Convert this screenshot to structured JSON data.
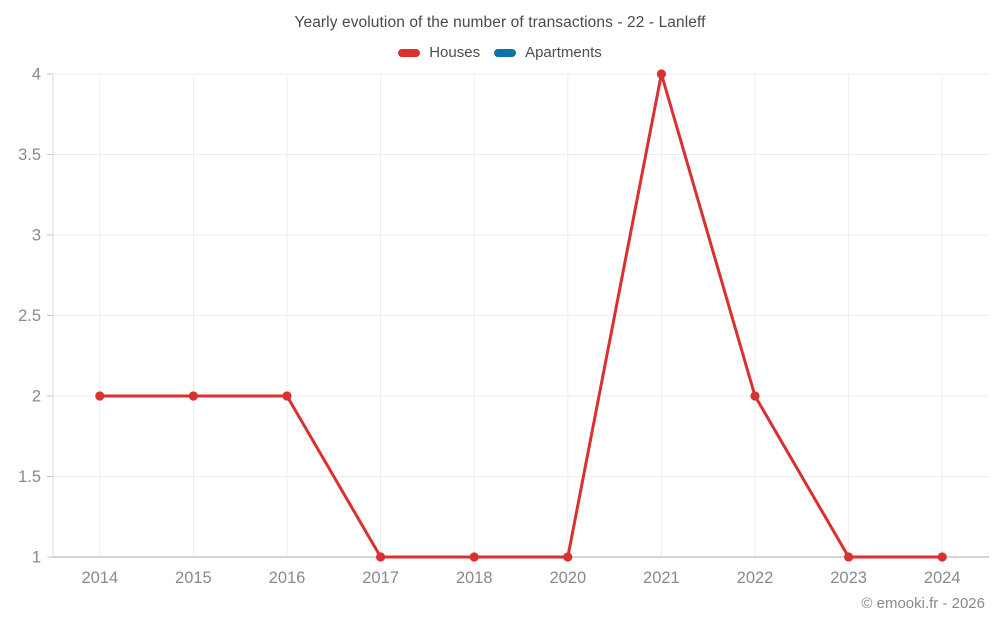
{
  "header": {
    "title": "Yearly evolution of the number of transactions - 22 - Lanleff"
  },
  "legend": {
    "items": [
      {
        "label": "Houses",
        "color": "#d93030"
      },
      {
        "label": "Apartments",
        "color": "#0f72a6"
      }
    ]
  },
  "footer": {
    "credit": "© emooki.fr - 2026"
  },
  "chart_data": {
    "type": "line",
    "title": "Yearly evolution of the number of transactions - 22 - Lanleff",
    "categories": [
      "2014",
      "2015",
      "2016",
      "2017",
      "2018",
      "2020",
      "2021",
      "2022",
      "2023",
      "2024"
    ],
    "series": [
      {
        "name": "Houses",
        "color": "#d93030",
        "values": [
          2,
          2,
          2,
          1,
          1,
          1,
          4,
          2,
          1,
          1
        ]
      },
      {
        "name": "Apartments",
        "color": "#0f72a6",
        "values": []
      }
    ],
    "xlabel": "",
    "ylabel": "",
    "ylim": [
      1,
      4
    ],
    "yticks": [
      1,
      1.5,
      2,
      2.5,
      3,
      3.5,
      4
    ],
    "grid": true,
    "legend_position": "top",
    "marker": "circle",
    "colors": {
      "grid_line": "#ededed",
      "axis_line": "#c6c6c6",
      "left_axis_line": "#d8d8d8",
      "tick_label": "#8a8a8a"
    }
  }
}
